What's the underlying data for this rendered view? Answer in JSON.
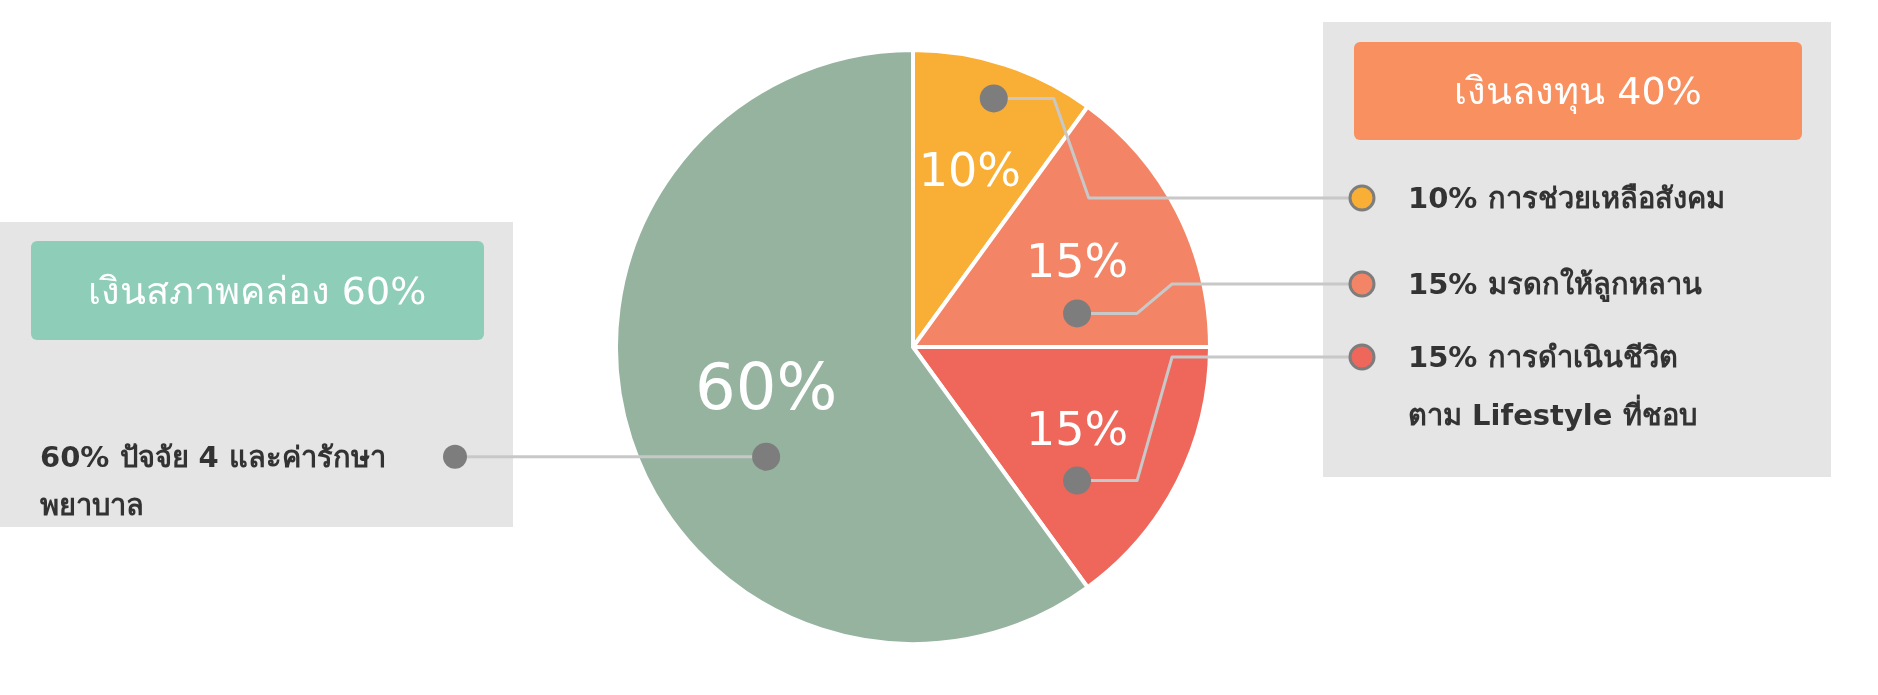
{
  "chart_data": {
    "type": "pie",
    "categories": [
      "10% การช่วยเหลือสังคม",
      "15% มรดกให้ลูกหลาน",
      "15% การดำเนินชีวิต\nตาม Lifestyle ที่ชอบ",
      "60% ปัจจัย 4 และค่ารักษา\nพยาบาล"
    ],
    "values": [
      10,
      15,
      15,
      60
    ],
    "colors": [
      "#f9ae35",
      "#f38465",
      "#ef675b",
      "#96b39f"
    ],
    "value_labels": [
      "10%",
      "15%",
      "15%",
      "60%"
    ],
    "annotations": [
      "เงินลงทุน  40%",
      "เงินสภาพคล่อง 60%"
    ],
    "legend": "right"
  }
}
